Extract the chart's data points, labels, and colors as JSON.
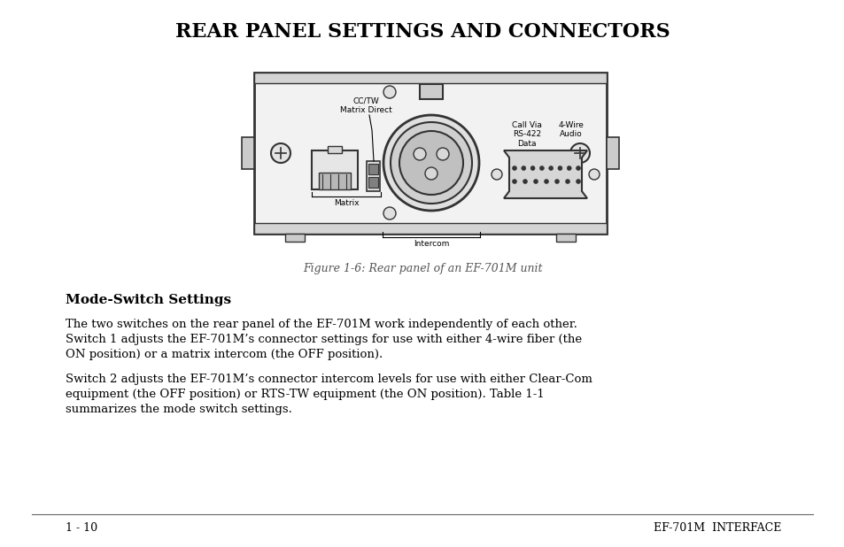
{
  "title": "REAR PANEL SETTINGS AND CONNECTORS",
  "figure_caption": "Figure 1-6: Rear panel of an EF-701M unit",
  "section_heading": "Mode-Switch Settings",
  "paragraph1_lines": [
    "The two switches on the rear panel of the EF-701M work independently of each other.",
    "Switch 1 adjusts the EF-701M’s connector settings for use with either 4-wire fiber (the",
    "ON position) or a matrix intercom (the OFF position)."
  ],
  "paragraph2_lines": [
    "Switch 2 adjusts the EF-701M’s connector intercom levels for use with either Clear-Com",
    "equipment (the OFF position) or RTS-TW equipment (the ON position). Table 1-1",
    "summarizes the mode switch settings."
  ],
  "footer_left": "1 - 10",
  "footer_right": "EF-701M  INTERFACE",
  "bg_color": "#ffffff",
  "text_color": "#000000",
  "panel_border": "#333333"
}
